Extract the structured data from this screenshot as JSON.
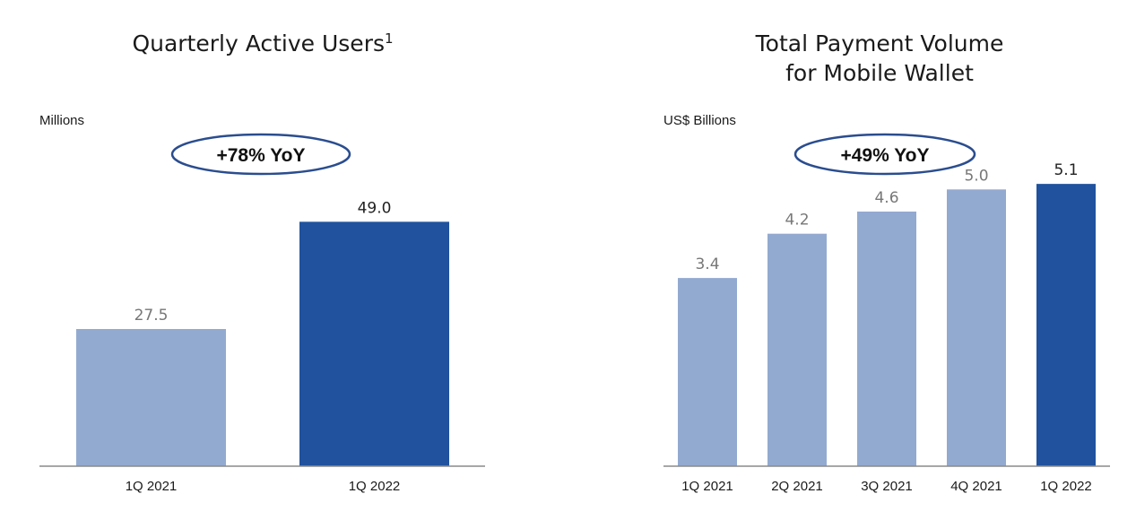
{
  "colors": {
    "light_bar": "#93aad0",
    "dark_bar": "#20529e",
    "light_label": "#777777",
    "dark_label": "#222222",
    "baseline": "#8a8a8a",
    "ellipse_stroke": "#2a4d8f"
  },
  "chart_data": [
    {
      "type": "bar",
      "title": "Quarterly Active Users",
      "title_superscript": "1",
      "title_lines": [
        "Quarterly Active Users"
      ],
      "ylabel": "Millions",
      "callout": "+78% YoY",
      "categories": [
        "1Q 2021",
        "1Q 2022"
      ],
      "values": [
        27.5,
        49.0
      ],
      "value_labels": [
        "27.5",
        "49.0"
      ],
      "highlight_index": 1,
      "ylim": [
        0,
        55
      ],
      "grid": false,
      "legend": "none"
    },
    {
      "type": "bar",
      "title": "Total Payment Volume for Mobile Wallet",
      "title_superscript": "",
      "title_lines": [
        "Total Payment Volume",
        "for Mobile Wallet"
      ],
      "ylabel": "US$ Billions",
      "callout": "+49% YoY",
      "categories": [
        "1Q 2021",
        "2Q 2021",
        "3Q 2021",
        "4Q 2021",
        "1Q 2022"
      ],
      "values": [
        3.4,
        4.2,
        4.6,
        5.0,
        5.1
      ],
      "value_labels": [
        "3.4",
        "4.2",
        "4.6",
        "5.0",
        "5.1"
      ],
      "highlight_index": 4,
      "ylim": [
        0,
        5.75
      ],
      "grid": false,
      "legend": "none"
    }
  ]
}
